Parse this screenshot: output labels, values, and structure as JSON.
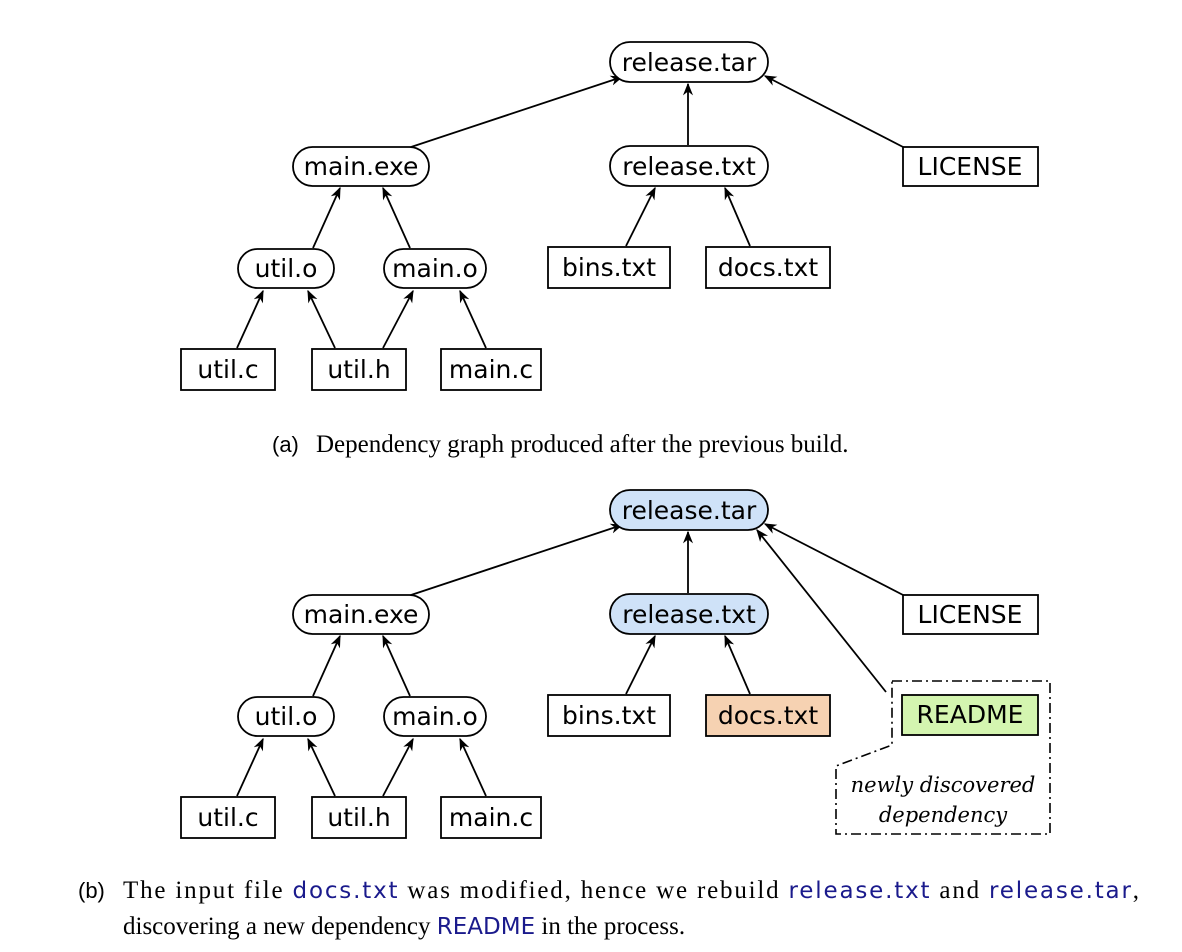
{
  "panel_a": {
    "caption_tag": "(a)",
    "caption_text": "Dependency graph produced after the previous build.",
    "nodes": {
      "release_tar": "release.tar",
      "main_exe": "main.exe",
      "release_txt": "release.txt",
      "license": "LICENSE",
      "util_o": "util.o",
      "main_o": "main.o",
      "bins_txt": "bins.txt",
      "docs_txt": "docs.txt",
      "util_c": "util.c",
      "util_h": "util.h",
      "main_c": "main.c"
    }
  },
  "panel_b": {
    "caption_tag": "(b)",
    "caption_line1_a": "The input file ",
    "caption_ref_docs": "docs.txt",
    "caption_line1_b": " was modified, hence we rebuild ",
    "caption_ref_release_txt": "release.txt",
    "caption_line1_c": " and ",
    "caption_ref_release_tar": "release.tar",
    "caption_line1_d": ",",
    "caption_line2_a": "discovering a new dependency ",
    "caption_ref_readme": "README",
    "caption_line2_b": " in the process.",
    "nodes": {
      "release_tar": "release.tar",
      "main_exe": "main.exe",
      "release_txt": "release.txt",
      "license": "LICENSE",
      "util_o": "util.o",
      "main_o": "main.o",
      "bins_txt": "bins.txt",
      "docs_txt": "docs.txt",
      "readme": "README",
      "util_c": "util.c",
      "util_h": "util.h",
      "main_c": "main.c"
    },
    "note_line1": "newly discovered",
    "note_line2": "dependency"
  },
  "colors": {
    "rebuilt_fill": "#cfe2f8",
    "modified_fill": "#f6d2b2",
    "new_fill": "#d4f5b0",
    "caption_ref": "#1a1a8c",
    "stroke": "#000000"
  }
}
